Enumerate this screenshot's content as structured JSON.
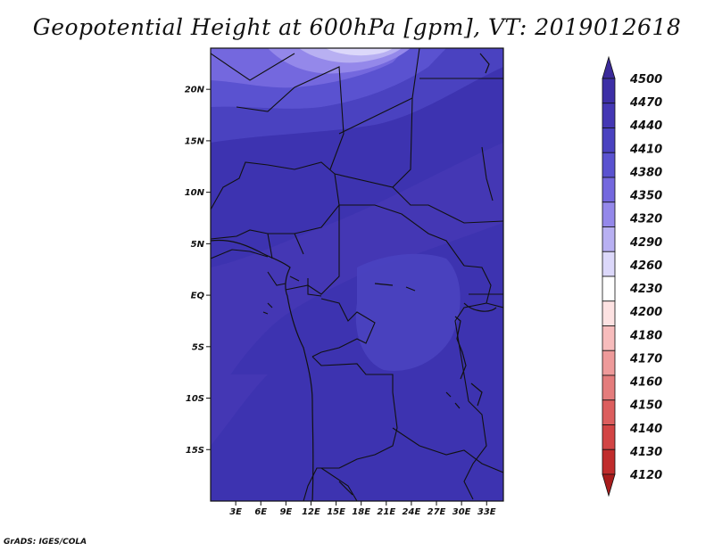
{
  "title": "Geopotential Height at 600hPa [gpm], VT: 2019012618",
  "credit": "GrADS: IGES/COLA",
  "map": {
    "lon_range": [
      0,
      35
    ],
    "lat_range": [
      -20,
      24
    ],
    "x_ticks": [
      {
        "lon": 3,
        "label": "3E"
      },
      {
        "lon": 6,
        "label": "6E"
      },
      {
        "lon": 9,
        "label": "9E"
      },
      {
        "lon": 12,
        "label": "12E"
      },
      {
        "lon": 15,
        "label": "15E"
      },
      {
        "lon": 18,
        "label": "18E"
      },
      {
        "lon": 21,
        "label": "21E"
      },
      {
        "lon": 24,
        "label": "24E"
      },
      {
        "lon": 27,
        "label": "27E"
      },
      {
        "lon": 30,
        "label": "30E"
      },
      {
        "lon": 33,
        "label": "33E"
      }
    ],
    "y_ticks": [
      {
        "lat": 20,
        "label": "20N"
      },
      {
        "lat": 15,
        "label": "15N"
      },
      {
        "lat": 10,
        "label": "10N"
      },
      {
        "lat": 5,
        "label": "5N"
      },
      {
        "lat": 0,
        "label": "EQ"
      },
      {
        "lat": -5,
        "label": "5S"
      },
      {
        "lat": -10,
        "label": "10S"
      },
      {
        "lat": -15,
        "label": "15S"
      }
    ]
  },
  "colorbar": {
    "levels": [
      {
        "label": "4500",
        "color": "#3b2a9a"
      },
      {
        "label": "4470",
        "color": "#3d2fa6"
      },
      {
        "label": "4440",
        "color": "#4437b4"
      },
      {
        "label": "4410",
        "color": "#4a42c0"
      },
      {
        "label": "4380",
        "color": "#5a52d0"
      },
      {
        "label": "4350",
        "color": "#7468de"
      },
      {
        "label": "4320",
        "color": "#9488ea"
      },
      {
        "label": "4290",
        "color": "#b8b0f2"
      },
      {
        "label": "4260",
        "color": "#dcd8fa"
      },
      {
        "label": "4230",
        "color": "#ffffff"
      },
      {
        "label": "4200",
        "color": "#fde2e2"
      },
      {
        "label": "4180",
        "color": "#f7bcbc"
      },
      {
        "label": "4170",
        "color": "#ee9a9a"
      },
      {
        "label": "4160",
        "color": "#e47c7c"
      },
      {
        "label": "4150",
        "color": "#dc5e5e"
      },
      {
        "label": "4140",
        "color": "#d24444"
      },
      {
        "label": "4130",
        "color": "#c02c2c"
      },
      {
        "label": "4120",
        "color": "#a81c1c"
      }
    ]
  }
}
